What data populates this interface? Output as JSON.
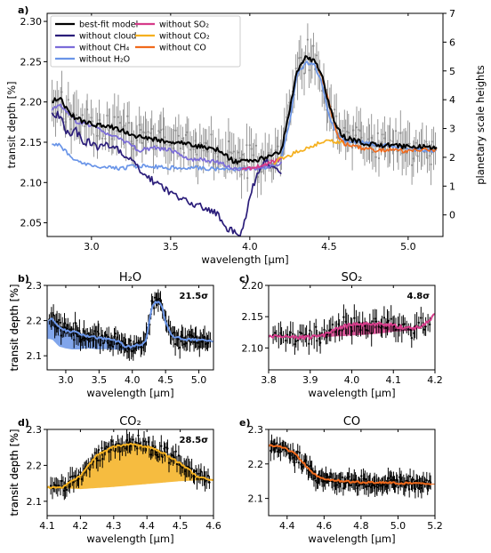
{
  "figure": {
    "background": "#ffffff"
  },
  "chart_data": [
    {
      "id": "a",
      "panel_label": "a)",
      "type": "line",
      "title": "",
      "xlabel": "wavelength [μm]",
      "ylabel": "transit depth [%]",
      "ylabel_right": "planetary scale heights",
      "xlim": [
        2.72,
        5.22
      ],
      "ylim": [
        2.033,
        2.31
      ],
      "right_ylim": [
        -0.75,
        7.0
      ],
      "xticks": [
        3.0,
        3.5,
        4.0,
        4.5,
        5.0
      ],
      "xtick_labels": [
        "3.0",
        "3.5",
        "4.0",
        "4.5",
        "5.0"
      ],
      "yticks": [
        2.05,
        2.1,
        2.15,
        2.2,
        2.25,
        2.3
      ],
      "ytick_labels": [
        "2.05",
        "2.10",
        "2.15",
        "2.20",
        "2.25",
        "2.30"
      ],
      "right_yticks": [
        0,
        1,
        2,
        3,
        4,
        5,
        6,
        7
      ],
      "right_ytick_labels": [
        "0",
        "1",
        "2",
        "3",
        "4",
        "5",
        "6",
        "7"
      ],
      "legend": {
        "placement": "top-left",
        "entries": [
          {
            "label": "best-fit model",
            "color": "#000000"
          },
          {
            "label": "without cloud",
            "color": "#2b1d7a"
          },
          {
            "label": "without CH₄",
            "color": "#7b6cd9"
          },
          {
            "label": "without H₂O",
            "color": "#6a95e8"
          },
          {
            "label": "without SO₂",
            "color": "#d63b8a"
          },
          {
            "label": "without CO₂",
            "color": "#f5b01e"
          },
          {
            "label": "without CO",
            "color": "#f06a1c"
          }
        ]
      },
      "observations": {
        "color": "#8c8c8c",
        "x_range": [
          2.75,
          5.18
        ],
        "count": 240,
        "typical_error": 0.022
      },
      "series": [
        {
          "name": "without H₂O",
          "color": "#6a95e8",
          "x": [
            2.75,
            2.8,
            2.9,
            3.0,
            3.1,
            3.2,
            3.3,
            3.4,
            3.5,
            3.6,
            3.7,
            3.8,
            3.9,
            3.95,
            4.0,
            4.05,
            4.1,
            4.15,
            4.2,
            4.25,
            4.3,
            4.35,
            4.4,
            4.45,
            4.5,
            4.55,
            4.6,
            4.7,
            4.8,
            4.9,
            5.0,
            5.1,
            5.18
          ],
          "y": [
            2.148,
            2.146,
            2.126,
            2.121,
            2.118,
            2.118,
            2.121,
            2.12,
            2.118,
            2.119,
            2.118,
            2.117,
            2.116,
            2.116,
            2.117,
            2.118,
            2.119,
            2.122,
            2.13,
            2.175,
            2.235,
            2.248,
            2.248,
            2.228,
            2.182,
            2.16,
            2.152,
            2.15,
            2.147,
            2.145,
            2.142,
            2.14,
            2.138
          ]
        },
        {
          "name": "without cloud",
          "color": "#2b1d7a",
          "x": [
            2.75,
            2.8,
            2.85,
            2.9,
            2.95,
            3.0,
            3.05,
            3.1,
            3.2,
            3.3,
            3.4,
            3.5,
            3.6,
            3.7,
            3.8,
            3.85,
            3.9,
            3.93,
            3.95,
            3.97,
            4.0,
            4.05,
            4.1,
            4.15,
            4.2
          ],
          "y": [
            2.188,
            2.182,
            2.16,
            2.165,
            2.15,
            2.15,
            2.142,
            2.148,
            2.136,
            2.118,
            2.1,
            2.088,
            2.076,
            2.07,
            2.06,
            2.045,
            2.038,
            2.035,
            2.04,
            2.055,
            2.085,
            2.112,
            2.126,
            2.12,
            2.114
          ]
        },
        {
          "name": "without CH₄",
          "color": "#7b6cd9",
          "x": [
            2.75,
            2.8,
            2.9,
            3.0,
            3.1,
            3.2,
            3.3,
            3.4,
            3.5,
            3.6,
            3.7,
            3.8,
            3.9,
            4.0,
            4.1,
            4.2
          ],
          "y": [
            2.19,
            2.197,
            2.176,
            2.17,
            2.161,
            2.152,
            2.14,
            2.143,
            2.14,
            2.13,
            2.128,
            2.125,
            2.118,
            2.116,
            2.119,
            2.124
          ]
        },
        {
          "name": "without SO₂",
          "color": "#d63b8a",
          "x": [
            3.95,
            4.0,
            4.05,
            4.1,
            4.15,
            4.2
          ],
          "y": [
            2.117,
            2.118,
            2.12,
            2.123,
            2.126,
            2.13
          ]
        },
        {
          "name": "without CO₂",
          "color": "#f5b01e",
          "x": [
            4.15,
            4.2,
            4.25,
            4.3,
            4.35,
            4.4,
            4.45,
            4.5,
            4.55,
            4.6
          ],
          "y": [
            2.124,
            2.13,
            2.134,
            2.138,
            2.142,
            2.146,
            2.15,
            2.152,
            2.15,
            2.148
          ]
        },
        {
          "name": "without CO",
          "color": "#f06a1c",
          "x": [
            4.42,
            4.45,
            4.5,
            4.55,
            4.6,
            4.7,
            4.8,
            4.9,
            5.0,
            5.1,
            5.18
          ],
          "y": [
            2.245,
            2.236,
            2.198,
            2.16,
            2.148,
            2.143,
            2.14,
            2.141,
            2.139,
            2.141,
            2.14
          ]
        },
        {
          "name": "best-fit model",
          "color": "#000000",
          "x": [
            2.75,
            2.8,
            2.85,
            2.9,
            3.0,
            3.1,
            3.2,
            3.3,
            3.4,
            3.5,
            3.6,
            3.7,
            3.8,
            3.9,
            4.0,
            4.1,
            4.15,
            4.2,
            4.25,
            4.3,
            4.35,
            4.4,
            4.45,
            4.5,
            4.55,
            4.6,
            4.7,
            4.8,
            4.9,
            5.0,
            5.1,
            5.18
          ],
          "y": [
            2.2,
            2.205,
            2.188,
            2.18,
            2.172,
            2.17,
            2.164,
            2.156,
            2.154,
            2.15,
            2.148,
            2.144,
            2.14,
            2.126,
            2.127,
            2.131,
            2.134,
            2.14,
            2.19,
            2.24,
            2.254,
            2.252,
            2.238,
            2.196,
            2.168,
            2.156,
            2.15,
            2.146,
            2.146,
            2.144,
            2.144,
            2.143
          ]
        }
      ]
    },
    {
      "id": "b",
      "panel_label": "b)",
      "type": "area",
      "title": "H₂O",
      "annotation": "21.5σ",
      "xlabel": "wavelength [μm]",
      "ylabel": "transit depth [%]",
      "xlim": [
        2.72,
        5.22
      ],
      "ylim": [
        2.06,
        2.3
      ],
      "xticks": [
        3.0,
        3.5,
        4.0,
        4.5,
        5.0
      ],
      "xtick_labels": [
        "3.0",
        "3.5",
        "4.0",
        "4.5",
        "5.0"
      ],
      "yticks": [
        2.1,
        2.2,
        2.3
      ],
      "ytick_labels": [
        "2.1",
        "2.2",
        "2.3"
      ],
      "fill_color": "#6a95e8",
      "observations": {
        "color": "#000000",
        "x_range": [
          2.75,
          5.18
        ],
        "count": 150,
        "typical_error": 0.024
      },
      "model": {
        "x": [
          2.75,
          2.8,
          2.9,
          3.0,
          3.1,
          3.2,
          3.3,
          3.4,
          3.5,
          3.6,
          3.7,
          3.8,
          3.9,
          4.0,
          4.1,
          4.15,
          4.2,
          4.25,
          4.3,
          4.35,
          4.4,
          4.45,
          4.5,
          4.6,
          4.7,
          4.8,
          4.9,
          5.0,
          5.1,
          5.18
        ],
        "y": [
          2.2,
          2.205,
          2.182,
          2.172,
          2.168,
          2.164,
          2.156,
          2.154,
          2.15,
          2.148,
          2.144,
          2.14,
          2.126,
          2.127,
          2.131,
          2.134,
          2.14,
          2.19,
          2.24,
          2.254,
          2.252,
          2.238,
          2.196,
          2.156,
          2.15,
          2.146,
          2.146,
          2.144,
          2.144,
          2.143
        ]
      },
      "baseline": {
        "x": [
          2.75,
          2.8,
          2.9,
          3.0,
          3.1,
          3.2,
          3.3,
          3.4,
          3.5,
          3.6,
          3.7,
          3.8,
          3.9,
          4.0,
          4.1,
          4.15,
          4.2,
          4.25,
          4.3,
          4.35,
          4.4,
          4.45,
          4.5,
          4.6,
          4.7,
          4.8,
          4.9,
          5.0,
          5.1,
          5.18
        ],
        "y": [
          2.148,
          2.146,
          2.126,
          2.121,
          2.118,
          2.118,
          2.121,
          2.12,
          2.118,
          2.119,
          2.118,
          2.117,
          2.116,
          2.117,
          2.119,
          2.122,
          2.13,
          2.175,
          2.235,
          2.248,
          2.248,
          2.228,
          2.182,
          2.152,
          2.15,
          2.147,
          2.145,
          2.142,
          2.14,
          2.138
        ]
      }
    },
    {
      "id": "c",
      "panel_label": "c)",
      "type": "area",
      "title": "SO₂",
      "annotation": "4.8σ",
      "xlabel": "wavelength [μm]",
      "ylabel": "transit depth [%]",
      "xlim": [
        3.8,
        4.2
      ],
      "ylim": [
        2.065,
        2.2
      ],
      "xticks": [
        3.8,
        3.9,
        4.0,
        4.1,
        4.2
      ],
      "xtick_labels": [
        "3.8",
        "3.9",
        "4.0",
        "4.1",
        "4.2"
      ],
      "yticks": [
        2.1,
        2.15,
        2.2
      ],
      "ytick_labels": [
        "2.10",
        "2.15",
        "2.20"
      ],
      "fill_color": "#d63b8a",
      "observations": {
        "color": "#000000",
        "x_range": [
          3.81,
          4.19
        ],
        "count": 90,
        "typical_error": 0.016
      },
      "model": {
        "x": [
          3.8,
          3.85,
          3.9,
          3.93,
          3.95,
          3.98,
          4.0,
          4.03,
          4.05,
          4.08,
          4.1,
          4.13,
          4.15,
          4.18,
          4.2
        ],
        "y": [
          2.118,
          2.117,
          2.117,
          2.119,
          2.127,
          2.134,
          2.137,
          2.138,
          2.139,
          2.138,
          2.136,
          2.132,
          2.131,
          2.14,
          2.153
        ]
      },
      "baseline": {
        "x": [
          3.8,
          3.85,
          3.9,
          3.93,
          3.95,
          3.98,
          4.0,
          4.03,
          4.05,
          4.08,
          4.1,
          4.13,
          4.15,
          4.18,
          4.2
        ],
        "y": [
          2.118,
          2.117,
          2.117,
          2.118,
          2.118,
          2.119,
          2.12,
          2.121,
          2.122,
          2.124,
          2.126,
          2.127,
          2.128,
          2.14,
          2.153
        ]
      }
    },
    {
      "id": "d",
      "panel_label": "d)",
      "type": "area",
      "title": "CO₂",
      "annotation": "28.5σ",
      "xlabel": "wavelength [μm]",
      "ylabel": "transit depth [%]",
      "xlim": [
        4.1,
        4.6
      ],
      "ylim": [
        2.06,
        2.3
      ],
      "xticks": [
        4.1,
        4.2,
        4.3,
        4.4,
        4.5,
        4.6
      ],
      "xtick_labels": [
        "4.1",
        "4.2",
        "4.3",
        "4.4",
        "4.5",
        "4.6"
      ],
      "yticks": [
        2.1,
        2.2,
        2.3
      ],
      "ytick_labels": [
        "2.1",
        "2.2",
        "2.3"
      ],
      "fill_color": "#f5b01e",
      "observations": {
        "color": "#000000",
        "x_range": [
          4.11,
          4.59
        ],
        "count": 120,
        "typical_error": 0.022
      },
      "model": {
        "x": [
          4.1,
          4.15,
          4.2,
          4.25,
          4.3,
          4.35,
          4.4,
          4.45,
          4.5,
          4.55,
          4.6
        ],
        "y": [
          2.138,
          2.14,
          2.172,
          2.228,
          2.252,
          2.258,
          2.252,
          2.234,
          2.206,
          2.17,
          2.158
        ]
      },
      "baseline": {
        "x": [
          4.1,
          4.15,
          4.2,
          4.25,
          4.3,
          4.35,
          4.4,
          4.45,
          4.5,
          4.55,
          4.6
        ],
        "y": [
          2.138,
          2.136,
          2.134,
          2.137,
          2.14,
          2.144,
          2.148,
          2.152,
          2.156,
          2.158,
          2.158
        ]
      }
    },
    {
      "id": "e",
      "panel_label": "e)",
      "type": "area",
      "title": "CO",
      "annotation": "",
      "xlabel": "wavelength [μm]",
      "ylabel": "transit depth [%]",
      "xlim": [
        4.3,
        5.2
      ],
      "ylim": [
        2.05,
        2.3
      ],
      "xticks": [
        4.4,
        4.6,
        4.8,
        5.0,
        5.2
      ],
      "xtick_labels": [
        "4.4",
        "4.6",
        "4.8",
        "5.0",
        "5.2"
      ],
      "yticks": [
        2.1,
        2.2,
        2.3
      ],
      "ytick_labels": [
        "2.1",
        "2.2",
        "2.3"
      ],
      "fill_color": "#f06a1c",
      "observations": {
        "color": "#000000",
        "x_range": [
          4.31,
          5.18
        ],
        "count": 160,
        "typical_error": 0.022
      },
      "model": {
        "x": [
          4.3,
          4.35,
          4.4,
          4.45,
          4.5,
          4.55,
          4.6,
          4.7,
          4.8,
          4.9,
          5.0,
          5.1,
          5.18
        ],
        "y": [
          2.252,
          2.252,
          2.242,
          2.226,
          2.196,
          2.168,
          2.156,
          2.15,
          2.147,
          2.146,
          2.144,
          2.144,
          2.143
        ]
      },
      "baseline": {
        "x": [
          4.3,
          4.35,
          4.4,
          4.45,
          4.5,
          4.55,
          4.6,
          4.7,
          4.8,
          4.9,
          5.0,
          5.1,
          5.18
        ],
        "y": [
          2.25,
          2.25,
          2.24,
          2.23,
          2.196,
          2.162,
          2.15,
          2.145,
          2.142,
          2.142,
          2.14,
          2.141,
          2.14
        ]
      }
    }
  ]
}
